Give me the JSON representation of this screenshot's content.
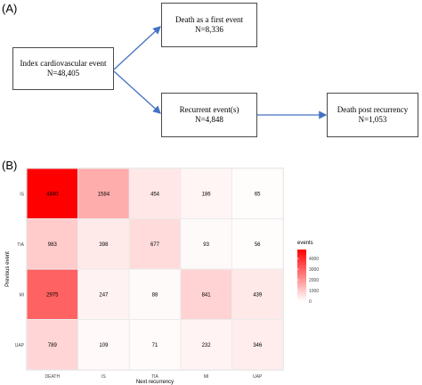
{
  "panels": {
    "a_label": "(A)",
    "b_label": "(B)"
  },
  "flowchart": {
    "index_box": {
      "title": "Index cardiovascular event",
      "count": "N=48,405"
    },
    "death_first_box": {
      "title": "Death as a first event",
      "count": "N=8,336"
    },
    "recurrent_box": {
      "title": "Recurrent event(s)",
      "count": "N=4,848"
    },
    "death_post_box": {
      "title": "Death post recurrency",
      "count": "N=1,053"
    },
    "arrow_color": "#4472c4"
  },
  "chart_data": {
    "type": "heatmap",
    "title": "",
    "xlabel": "Next recurrency",
    "ylabel": "Previous event",
    "x_categories": [
      "DEATH",
      "IS",
      "TIA",
      "MI",
      "UAP"
    ],
    "y_categories": [
      "IS",
      "TIA",
      "MI",
      "UAP"
    ],
    "values": [
      [
        4840,
        1584,
        454,
        186,
        65
      ],
      [
        983,
        398,
        677,
        93,
        56
      ],
      [
        2975,
        247,
        88,
        841,
        439
      ],
      [
        789,
        109,
        71,
        232,
        346
      ]
    ],
    "legend": {
      "title": "events",
      "ticks": [
        4000,
        3000,
        2000,
        1000,
        0
      ],
      "tick_labels": [
        "4000",
        "3000",
        "2000",
        "1000",
        "0"
      ],
      "placement": "right"
    },
    "color_low": "#ffffff",
    "color_high": "#ff0000",
    "value_range": [
      0,
      4840
    ],
    "panel_background": "#ebebeb"
  }
}
